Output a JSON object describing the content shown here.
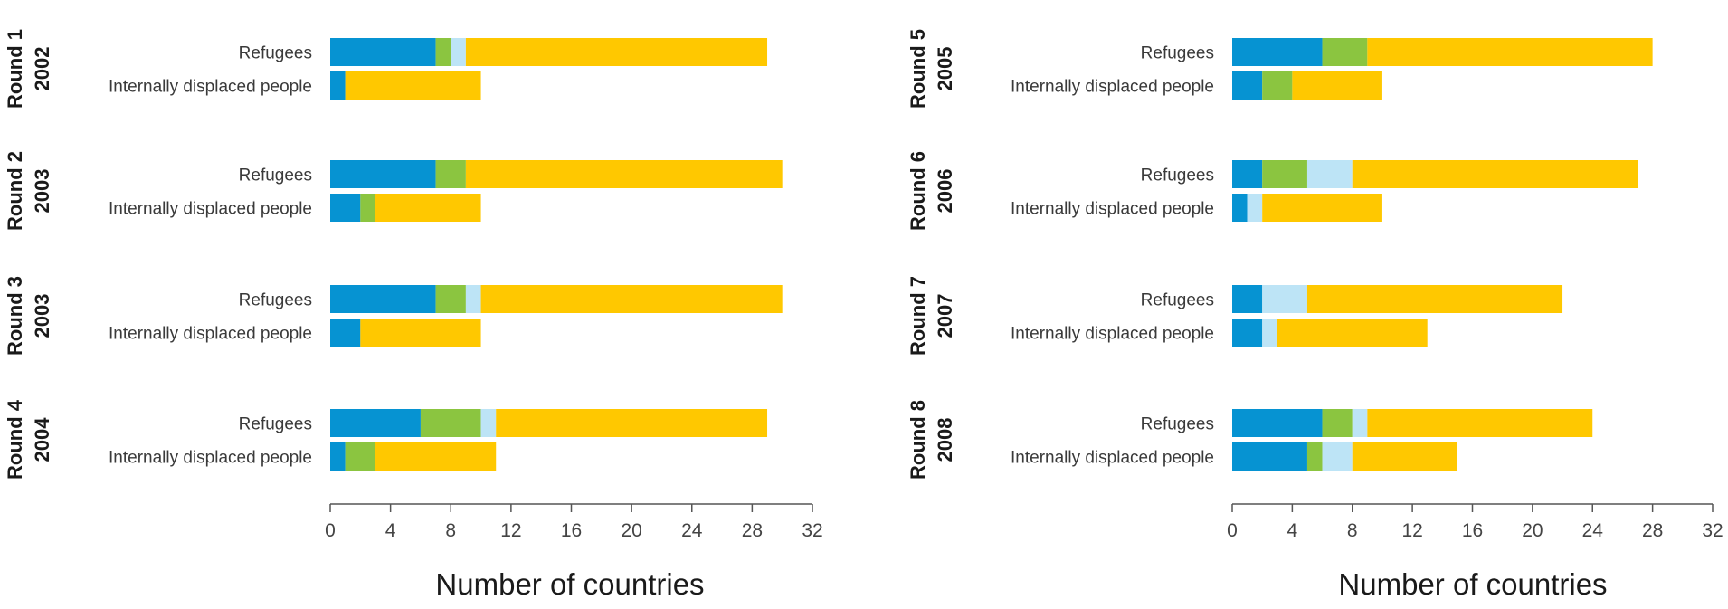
{
  "colors": {
    "segment_1": "#0693D2",
    "segment_2": "#8BC540",
    "segment_3": "#BDE4F6",
    "segment_4": "#FFC800"
  },
  "chart_data": [
    {
      "type": "bar",
      "orientation": "horizontal",
      "stacked": true,
      "xlabel": "Number of countries",
      "xlim": [
        0,
        32
      ],
      "xticks": [
        0,
        4,
        8,
        12,
        16,
        20,
        24,
        28,
        32
      ],
      "categories": [
        "Refugees",
        "Internally displaced people"
      ],
      "groups": [
        {
          "round": "Round 1",
          "year": "2002",
          "stacks": [
            [
              7,
              1,
              1,
              20
            ],
            [
              1,
              0,
              0,
              9
            ]
          ]
        },
        {
          "round": "Round 2",
          "year": "2003",
          "stacks": [
            [
              7,
              2,
              0,
              21
            ],
            [
              2,
              1,
              0,
              7
            ]
          ]
        },
        {
          "round": "Round 3",
          "year": "2003",
          "stacks": [
            [
              7,
              2,
              1,
              20
            ],
            [
              2,
              0,
              0,
              8
            ]
          ]
        },
        {
          "round": "Round 4",
          "year": "2004",
          "stacks": [
            [
              6,
              4,
              1,
              18
            ],
            [
              1,
              2,
              0,
              8
            ]
          ]
        }
      ]
    },
    {
      "type": "bar",
      "orientation": "horizontal",
      "stacked": true,
      "xlabel": "Number of countries",
      "xlim": [
        0,
        32
      ],
      "xticks": [
        0,
        4,
        8,
        12,
        16,
        20,
        24,
        28,
        32
      ],
      "categories": [
        "Refugees",
        "Internally displaced people"
      ],
      "groups": [
        {
          "round": "Round 5",
          "year": "2005",
          "stacks": [
            [
              6,
              3,
              0,
              19
            ],
            [
              2,
              2,
              0,
              6
            ]
          ]
        },
        {
          "round": "Round 6",
          "year": "2006",
          "stacks": [
            [
              2,
              3,
              3,
              19
            ],
            [
              1,
              0,
              1,
              8
            ]
          ]
        },
        {
          "round": "Round 7",
          "year": "2007",
          "stacks": [
            [
              2,
              0,
              3,
              17
            ],
            [
              2,
              0,
              1,
              10
            ]
          ]
        },
        {
          "round": "Round 8",
          "year": "2008",
          "stacks": [
            [
              6,
              2,
              1,
              15
            ],
            [
              5,
              1,
              2,
              7
            ]
          ]
        }
      ]
    }
  ]
}
